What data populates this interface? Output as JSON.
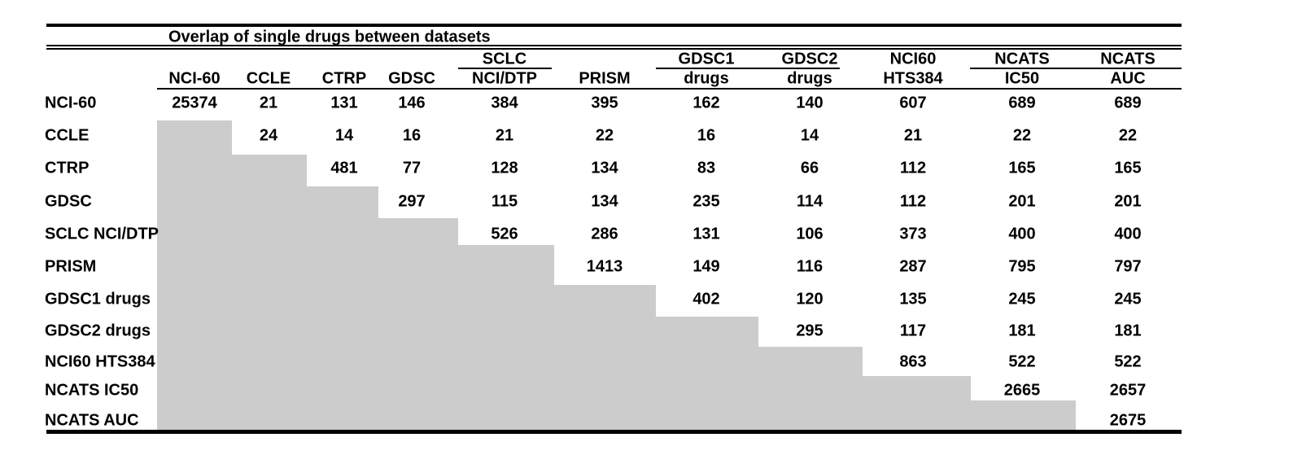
{
  "chart_data": {
    "type": "table",
    "title": "Overlap of single drugs between datasets",
    "layout_note": "upper-triangular overlap matrix; lower triangle shaded gray",
    "columns": [
      {
        "group": "",
        "name": "NCI-60"
      },
      {
        "group": "",
        "name": "CCLE"
      },
      {
        "group": "",
        "name": "CTRP"
      },
      {
        "group": "",
        "name": "GDSC"
      },
      {
        "group": "SCLC",
        "name": "NCI/DTP"
      },
      {
        "group": "",
        "name": "PRISM"
      },
      {
        "group": "GDSC1",
        "name": "drugs"
      },
      {
        "group": "GDSC2",
        "name": "drugs"
      },
      {
        "group": "NCI60",
        "name": "HTS384"
      },
      {
        "group": "NCATS",
        "name": "IC50"
      },
      {
        "group": "NCATS",
        "name": "AUC"
      }
    ],
    "rows": [
      {
        "label": "NCI-60",
        "values": [
          25374,
          21,
          131,
          146,
          384,
          395,
          162,
          140,
          607,
          689,
          689
        ]
      },
      {
        "label": "CCLE",
        "values": [
          24,
          14,
          16,
          21,
          22,
          16,
          14,
          21,
          22,
          22
        ]
      },
      {
        "label": "CTRP",
        "values": [
          481,
          77,
          128,
          134,
          83,
          66,
          112,
          165,
          165
        ]
      },
      {
        "label": "GDSC",
        "values": [
          297,
          115,
          134,
          235,
          114,
          112,
          201,
          201
        ]
      },
      {
        "label": "SCLC NCI/DTP",
        "values": [
          526,
          286,
          131,
          106,
          373,
          400,
          400
        ]
      },
      {
        "label": "PRISM",
        "values": [
          1413,
          149,
          116,
          287,
          795,
          797
        ]
      },
      {
        "label": "GDSC1 drugs",
        "values": [
          402,
          120,
          135,
          245,
          245
        ]
      },
      {
        "label": "GDSC2 drugs",
        "values": [
          295,
          117,
          181,
          181
        ]
      },
      {
        "label": "NCI60 HTS384",
        "values": [
          863,
          522,
          522
        ]
      },
      {
        "label": "NCATS IC50",
        "values": [
          2665,
          2657
        ]
      },
      {
        "label": "NCATS AUC",
        "values": [
          2675
        ]
      }
    ]
  },
  "colors": {
    "shade": "#cccccc",
    "text": "#000000",
    "rule": "#000000",
    "background": "#ffffff"
  }
}
